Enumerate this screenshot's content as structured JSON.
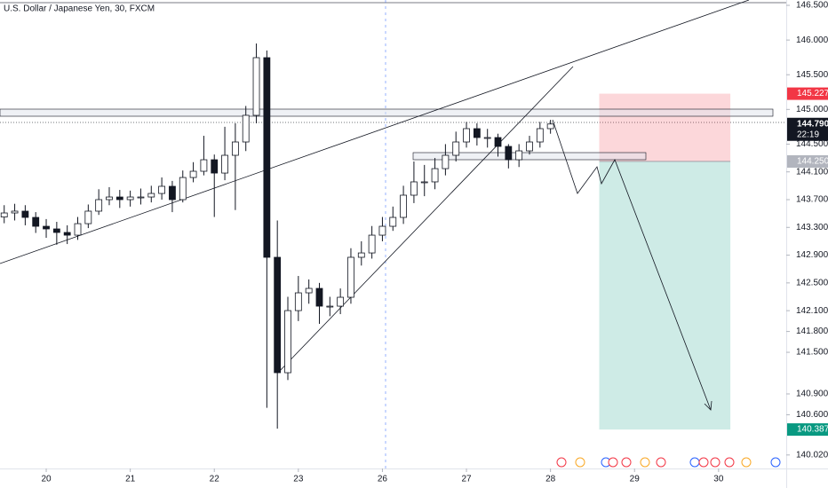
{
  "chart_data": {
    "type": "candlestick",
    "title": "U.S. Dollar / Japanese Yen, 30, FXCM",
    "x": [
      -0.5,
      -0.375,
      -0.25,
      -0.125,
      0,
      0.125,
      0.25,
      0.375,
      0.5,
      0.625,
      0.75,
      0.875,
      1,
      1.125,
      1.25,
      1.375,
      1.5,
      1.625,
      1.75,
      1.875,
      2,
      2.125,
      2.25,
      2.375,
      2.5,
      2.625,
      2.75,
      2.875,
      3,
      3.125,
      3.25,
      3.375,
      3.5,
      3.625,
      3.75,
      3.875,
      4,
      4.125,
      4.25,
      4.375,
      4.5,
      4.625,
      4.75,
      4.875,
      5,
      5.125,
      5.25,
      5.375,
      5.5,
      5.625,
      5.75,
      5.875,
      6
    ],
    "open": [
      143.45,
      143.508,
      143.534,
      143.444,
      143.316,
      143.278,
      143.227,
      143.188,
      143.354,
      143.534,
      143.7,
      143.738,
      143.7,
      143.738,
      143.738,
      143.789,
      143.892,
      143.7,
      144.019,
      144.109,
      144.275,
      144.083,
      144.339,
      144.531,
      144.915,
      145.746,
      142.869,
      141.206,
      142.101,
      142.357,
      142.421,
      142.165,
      142.165,
      142.293,
      142.869,
      142.932,
      143.188,
      143.316,
      143.444,
      143.764,
      143.956,
      143.956,
      144.147,
      144.339,
      144.531,
      144.723,
      144.595,
      144.595,
      144.467,
      144.275,
      144.403,
      144.531,
      144.723
    ],
    "high": [
      143.62,
      143.64,
      143.62,
      143.52,
      143.42,
      143.38,
      143.33,
      143.45,
      143.63,
      143.85,
      143.88,
      143.84,
      143.83,
      143.86,
      143.9,
      144.02,
      143.97,
      144.12,
      144.24,
      144.62,
      144.35,
      144.75,
      144.8,
      145.05,
      145.95,
      145.85,
      143.4,
      142.3,
      142.6,
      142.55,
      142.5,
      142.3,
      142.42,
      143,
      143.1,
      143.32,
      143.45,
      143.6,
      143.9,
      144.25,
      144.2,
      144.3,
      144.5,
      144.68,
      144.82,
      144.8,
      144.72,
      144.65,
      144.5,
      144.5,
      144.62,
      144.82,
      144.85
    ],
    "low": [
      143.36,
      143.4,
      143.33,
      143.22,
      143.15,
      143.05,
      143.06,
      143.12,
      143.29,
      143.48,
      143.62,
      143.58,
      143.6,
      143.63,
      143.66,
      143.7,
      143.52,
      143.66,
      143.95,
      144.05,
      143.45,
      143.98,
      143.55,
      144.4,
      144.8,
      140.7,
      140.4,
      141.1,
      141.95,
      142.2,
      141.91,
      142.02,
      142.05,
      142.2,
      142.75,
      142.85,
      143.1,
      143.25,
      143.35,
      143.65,
      143.75,
      143.85,
      144.05,
      144.25,
      144.45,
      144.48,
      144.45,
      144.32,
      144.15,
      144.17,
      144.35,
      144.45,
      144.65
    ],
    "close": [
      143.508,
      143.534,
      143.444,
      143.316,
      143.278,
      143.227,
      143.188,
      143.354,
      143.534,
      143.7,
      143.738,
      143.7,
      143.738,
      143.738,
      143.789,
      143.892,
      143.7,
      144.019,
      144.109,
      144.275,
      144.083,
      144.339,
      144.531,
      144.915,
      145.746,
      142.869,
      141.206,
      142.101,
      142.357,
      142.421,
      142.165,
      142.165,
      142.293,
      142.869,
      142.932,
      143.188,
      143.316,
      143.444,
      143.764,
      143.956,
      143.956,
      144.147,
      144.339,
      144.531,
      144.723,
      144.595,
      144.595,
      144.467,
      144.275,
      144.403,
      144.531,
      144.723,
      144.79
    ],
    "up_color": "#ffffff",
    "down_color": "#131722",
    "xlim": [
      -0.55,
      8.805
    ],
    "xticks": [
      {
        "value": 0,
        "label": "20"
      },
      {
        "value": 1,
        "label": "21"
      },
      {
        "value": 2,
        "label": "22"
      },
      {
        "value": 3,
        "label": "23"
      },
      {
        "value": 4,
        "label": "26"
      },
      {
        "value": 5,
        "label": "27"
      },
      {
        "value": 6,
        "label": "28"
      },
      {
        "value": 7,
        "label": "29"
      },
      {
        "value": 8,
        "label": "30"
      }
    ],
    "ylim": [
      139.864,
      146.577
    ],
    "yticks": [
      {
        "value": 146.5,
        "label": "146.500"
      },
      {
        "value": 146,
        "label": "146.000"
      },
      {
        "value": 145.5,
        "label": "145.500"
      },
      {
        "value": 145,
        "label": "145.000"
      },
      {
        "value": 144.5,
        "label": "144.500"
      },
      {
        "value": 144.1,
        "label": "144.100"
      },
      {
        "value": 143.7,
        "label": "143.700"
      },
      {
        "value": 143.3,
        "label": "143.300"
      },
      {
        "value": 142.9,
        "label": "142.900"
      },
      {
        "value": 142.5,
        "label": "142.500"
      },
      {
        "value": 142.1,
        "label": "142.100"
      },
      {
        "value": 141.8,
        "label": "141.800"
      },
      {
        "value": 141.5,
        "label": "141.500"
      },
      {
        "value": 140.9,
        "label": "140.900"
      },
      {
        "value": 140.6,
        "label": "140.600"
      },
      {
        "value": 140.02,
        "label": "140.020"
      }
    ],
    "position": {
      "start": 6.58,
      "end": 8.14,
      "stop": 145.227,
      "entry": {
        "value": 144.25,
        "label": "144.250"
      },
      "target": 140.387,
      "stop_color": "#f23645",
      "target_color": "#089981",
      "entry_color": "#b2b5be"
    },
    "last_price": {
      "value": 144.79,
      "label": "144.790",
      "countdown": "22:19",
      "color": "#131722"
    }
  }
}
